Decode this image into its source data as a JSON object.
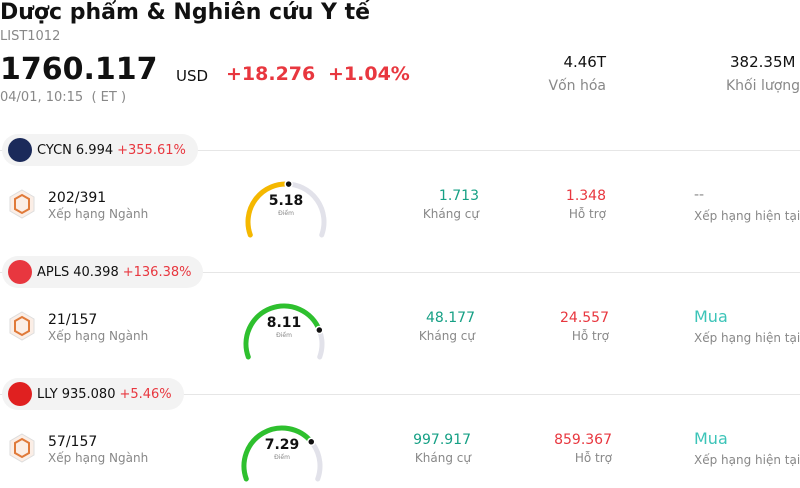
{
  "header": {
    "title": "Dược phẩm & Nghiên cứu Y tế",
    "code": "LIST1012",
    "price": "1760.117",
    "currency": "USD",
    "change": "+18.276",
    "change_pct": "+1.04%",
    "time": "04/01, 10:15  ( ET )",
    "market_cap": "4.46T",
    "market_cap_label": "Vốn hóa",
    "volume": "382.35M",
    "volume_label": "Khối lượng"
  },
  "stocks": [
    {
      "ticker": "CYCN",
      "price": "6.994",
      "change_pct": "+355.61%",
      "rank": "202/391",
      "rank_label": "Xếp hạng Ngành",
      "score": "5.18",
      "score_label": "Điểm",
      "resistance": "1.713",
      "resistance_label": "Kháng cự",
      "support": "1.348",
      "support_label": "Hỗ trợ",
      "rating": "--",
      "rating_label": "Xếp hạng hiện tại"
    },
    {
      "ticker": "APLS",
      "price": "40.398",
      "change_pct": "+136.38%",
      "rank": "21/157",
      "rank_label": "Xếp hạng Ngành",
      "score": "8.11",
      "score_label": "Điểm",
      "resistance": "48.177",
      "resistance_label": "Kháng cự",
      "support": "24.557",
      "support_label": "Hỗ trợ",
      "rating": "Mua",
      "rating_label": "Xếp hạng hiện tại"
    },
    {
      "ticker": "LLY",
      "price": "935.080",
      "change_pct": "+5.46%",
      "rank": "57/157",
      "rank_label": "Xếp hạng Ngành",
      "score": "7.29",
      "score_label": "Điểm",
      "resistance": "997.917",
      "resistance_label": "Kháng cự",
      "support": "859.367",
      "support_label": "Hỗ trợ",
      "rating": "Mua",
      "rating_label": "Xếp hạng hiện tại"
    }
  ]
}
